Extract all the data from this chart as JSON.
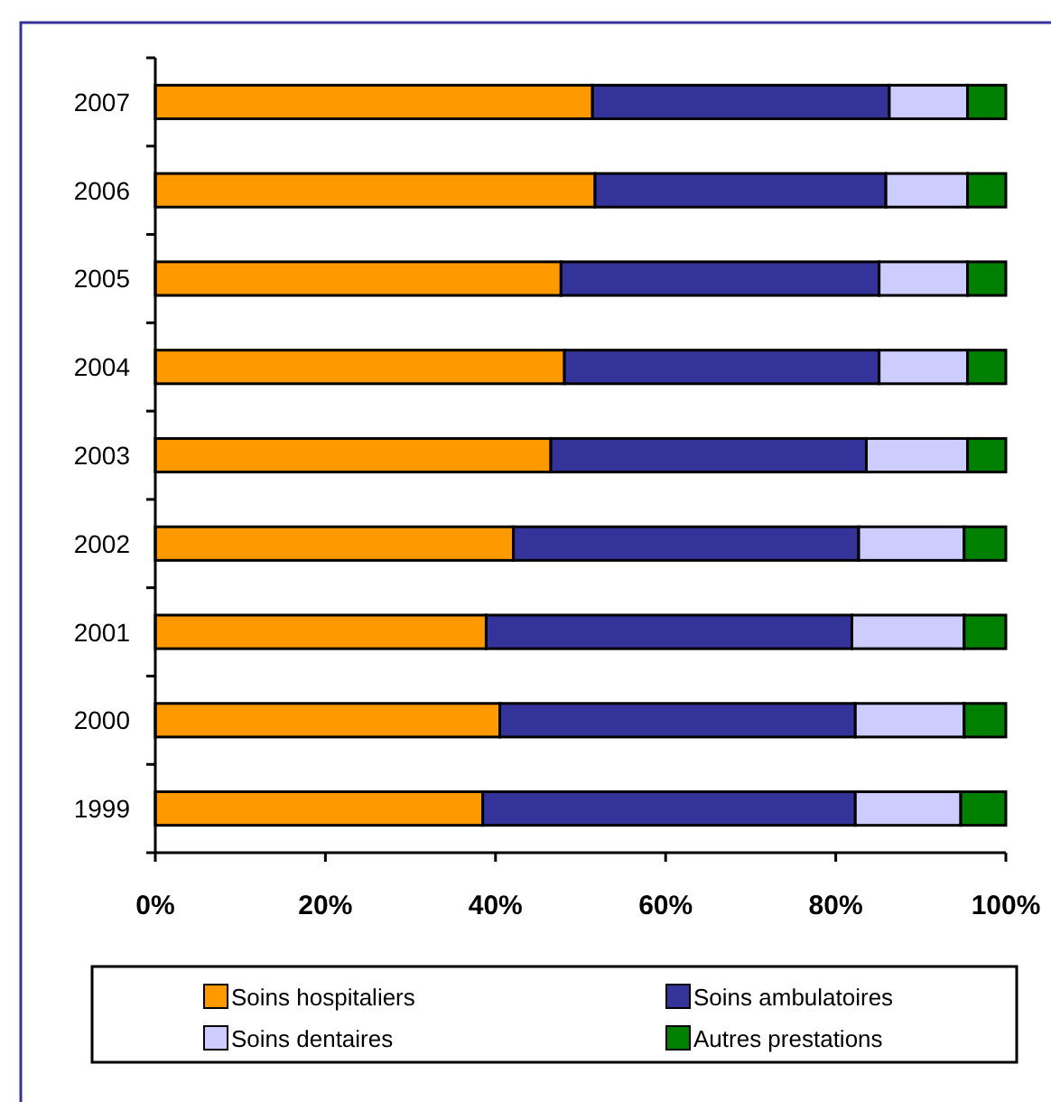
{
  "chart_data": {
    "type": "bar",
    "orientation": "horizontal",
    "stacked": true,
    "categories": [
      "2007",
      "2006",
      "2005",
      "2004",
      "2003",
      "2002",
      "2001",
      "2000",
      "1999"
    ],
    "series": [
      {
        "name": "Soins hospitaliers",
        "color": "#ff9900",
        "values": [
          51.4,
          51.7,
          47.7,
          48.1,
          46.5,
          42.1,
          38.9,
          40.5,
          38.5
        ]
      },
      {
        "name": "Soins ambulatoires",
        "color": "#333399",
        "values": [
          34.9,
          34.2,
          37.4,
          37.0,
          37.1,
          40.6,
          43.0,
          41.8,
          43.8
        ]
      },
      {
        "name": "Soins dentaires",
        "color": "#ccccff",
        "values": [
          9.2,
          9.6,
          10.4,
          10.4,
          11.9,
          12.4,
          13.2,
          12.8,
          12.4
        ]
      },
      {
        "name": "Autres prestations",
        "color": "#008000",
        "values": [
          4.5,
          4.5,
          4.5,
          4.5,
          4.5,
          4.9,
          4.9,
          4.9,
          5.3
        ]
      }
    ],
    "xlim": [
      0,
      100
    ],
    "xticks": [
      {
        "value": 0,
        "label": "0%"
      },
      {
        "value": 20,
        "label": "20%"
      },
      {
        "value": 40,
        "label": "40%"
      },
      {
        "value": 60,
        "label": "60%"
      },
      {
        "value": 80,
        "label": "80%"
      },
      {
        "value": 100,
        "label": "100%"
      }
    ],
    "legend": "bottom",
    "grid": false
  }
}
